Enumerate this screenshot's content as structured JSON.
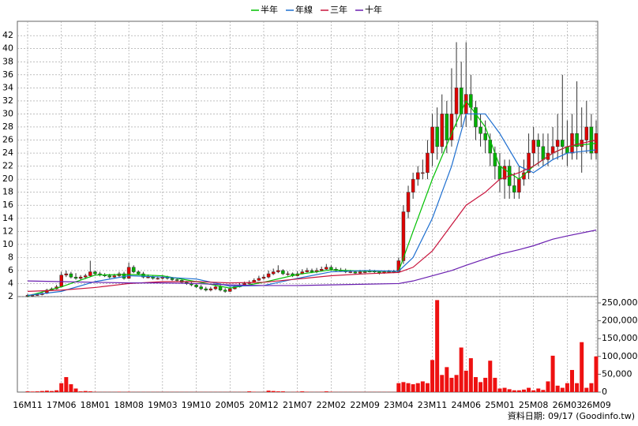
{
  "chart_data": {
    "type": "candlestick",
    "categories": [
      "16M11",
      null,
      null,
      null,
      null,
      null,
      null,
      "17M06",
      null,
      null,
      null,
      null,
      null,
      null,
      "18M01",
      null,
      null,
      null,
      null,
      null,
      null,
      "18M08",
      null,
      null,
      null,
      null,
      null,
      null,
      "19M03",
      null,
      null,
      null,
      null,
      null,
      null,
      "19M10",
      null,
      null,
      null,
      null,
      null,
      null,
      "20M05",
      null,
      null,
      null,
      null,
      null,
      null,
      "20M12",
      null,
      null,
      null,
      null,
      null,
      null,
      "21M07",
      null,
      null,
      null,
      null,
      null,
      null,
      "22M02",
      null,
      null,
      null,
      null,
      null,
      null,
      "22M09",
      null,
      null,
      null,
      null,
      null,
      null,
      "23M04",
      null,
      null,
      null,
      null,
      null,
      null,
      "23M11",
      null,
      null,
      null,
      null,
      null,
      null,
      "24M06",
      null,
      null,
      null,
      null,
      null,
      null,
      "25M01",
      null,
      null,
      null,
      null,
      null,
      null,
      "25M08",
      null,
      null,
      null,
      null,
      null,
      null,
      "26M03",
      null,
      null,
      null,
      null,
      null,
      "26M09"
    ],
    "open": [
      2.1,
      2.2,
      2.2,
      2.3,
      2.5,
      3,
      3.2,
      3.5,
      5.3,
      5.5,
      5,
      4.8,
      5,
      5.2,
      5.8,
      5.5,
      5.3,
      5.2,
      5,
      5.2,
      5.5,
      4.8,
      6.5,
      5.8,
      5.5,
      5,
      5,
      4.8,
      4.8,
      5,
      4.8,
      4.6,
      4.5,
      4.2,
      4,
      3.8,
      3.5,
      3.2,
      3,
      3.2,
      3.5,
      3,
      2.8,
      3.2,
      3.5,
      3.8,
      4,
      4.2,
      4.5,
      4.8,
      5,
      5.5,
      5.8,
      6,
      5.5,
      5.5,
      5.2,
      5.5,
      5.8,
      6,
      5.8,
      6,
      6.2,
      6.5,
      6.2,
      6,
      6,
      5.8,
      5.8,
      5.6,
      5.8,
      5.8,
      5.9,
      5.8,
      5.6,
      5.8,
      5.8,
      5.8,
      7.5,
      15,
      18,
      20,
      21,
      21,
      24,
      28,
      25,
      30,
      26,
      30,
      34,
      30,
      33,
      31,
      28,
      27,
      26,
      24,
      22,
      20,
      22,
      19,
      18,
      20,
      21,
      24,
      26,
      25,
      23,
      24,
      25,
      26,
      25,
      24,
      27,
      25,
      26,
      28,
      24
    ],
    "high": [
      2.4,
      2.4,
      2.5,
      2.8,
      3.2,
      3.4,
      3.8,
      5.8,
      6,
      5.8,
      5.6,
      5.3,
      5.5,
      7.5,
      6,
      5.8,
      5.6,
      5.5,
      5.5,
      5.8,
      5.8,
      7.2,
      6.8,
      6,
      5.8,
      5.4,
      5.2,
      5.1,
      5.3,
      5.2,
      5,
      4.8,
      4.6,
      4.4,
      4.2,
      4,
      3.8,
      3.5,
      3.5,
      3.8,
      3.8,
      3.3,
      3.5,
      3.8,
      4.1,
      4.3,
      4.5,
      4.8,
      5.2,
      5.4,
      6,
      6.3,
      6.8,
      6.2,
      5.9,
      5.7,
      5.9,
      6.2,
      6.4,
      6.3,
      6.4,
      6.6,
      7,
      6.8,
      6.5,
      6.4,
      6.3,
      6.1,
      6,
      6.1,
      6.1,
      6.2,
      6.1,
      6,
      6,
      6.1,
      6.1,
      8,
      16,
      19,
      21,
      22,
      23,
      26,
      30,
      31,
      33,
      32,
      37,
      41,
      38,
      41,
      36,
      32,
      30,
      29,
      27,
      25,
      24,
      23,
      23,
      21,
      22,
      23,
      27,
      28,
      27,
      27,
      27,
      28,
      30,
      36,
      29,
      30,
      35,
      31,
      32,
      30,
      29
    ],
    "low": [
      1.9,
      2,
      2.1,
      2.2,
      2.4,
      2.9,
      3.1,
      3.4,
      5,
      4.8,
      4.6,
      4.6,
      4.7,
      5,
      5.2,
      5.1,
      5,
      4.8,
      4.8,
      5,
      4.6,
      4.7,
      5.6,
      5.3,
      4.8,
      4.8,
      4.6,
      4.6,
      4.6,
      4.6,
      4.4,
      4.3,
      4,
      3.8,
      3.6,
      3.3,
      3,
      2.8,
      2.8,
      3,
      2.8,
      2.6,
      2.7,
      3.1,
      3.4,
      3.7,
      3.9,
      4.1,
      4.4,
      4.6,
      4.8,
      5.3,
      5.6,
      5.3,
      5.2,
      5,
      5.1,
      5.4,
      5.7,
      5.6,
      5.6,
      5.9,
      6.1,
      6,
      5.8,
      5.8,
      5.6,
      5.6,
      5.4,
      5.5,
      5.6,
      5.7,
      5.6,
      5.4,
      5.5,
      5.6,
      5.6,
      5.6,
      7,
      14,
      17,
      19,
      20,
      20,
      22,
      23,
      24,
      24,
      25,
      28,
      28,
      28,
      29,
      26,
      25,
      24,
      22,
      20,
      18,
      17,
      17,
      17,
      17,
      19,
      20,
      22,
      22,
      22,
      22,
      23,
      23,
      23,
      22,
      23,
      23,
      21,
      24,
      23,
      23
    ],
    "close": [
      2.2,
      2.2,
      2.3,
      2.5,
      3,
      3.2,
      3.5,
      5.3,
      5.5,
      5,
      4.8,
      5,
      5.2,
      5.8,
      5.5,
      5.3,
      5.2,
      5,
      5.2,
      5.5,
      4.8,
      6.5,
      5.8,
      5.5,
      5,
      5,
      4.8,
      4.8,
      5,
      4.8,
      4.6,
      4.5,
      4.2,
      4,
      3.8,
      3.5,
      3.2,
      3,
      3.2,
      3.5,
      3,
      2.8,
      3.2,
      3.5,
      3.8,
      4,
      4.2,
      4.5,
      4.8,
      5,
      5.5,
      5.8,
      6,
      5.5,
      5.5,
      5.2,
      5.5,
      5.8,
      6,
      5.8,
      6,
      6.2,
      6.5,
      6.2,
      6,
      6,
      5.8,
      5.8,
      5.6,
      5.8,
      5.8,
      5.9,
      5.8,
      5.6,
      5.8,
      5.8,
      5.8,
      7.5,
      15,
      18,
      20,
      21,
      21,
      24,
      28,
      25,
      30,
      26,
      30,
      34,
      30,
      33,
      31,
      28,
      27,
      26,
      24,
      22,
      20,
      22,
      19,
      18,
      20,
      21,
      24,
      26,
      25,
      23,
      24,
      25,
      26,
      25,
      24,
      27,
      25,
      26,
      28,
      24,
      27
    ],
    "volume": [
      2000,
      1500,
      2000,
      3000,
      4000,
      3000,
      5000,
      25000,
      42000,
      22000,
      10000,
      2000,
      3000,
      2000,
      1000,
      500,
      500,
      500,
      500,
      1000,
      500,
      1000,
      500,
      500,
      500,
      500,
      500,
      500,
      500,
      500,
      500,
      500,
      500,
      500,
      500,
      500,
      500,
      500,
      500,
      500,
      500,
      500,
      500,
      500,
      500,
      500,
      2000,
      1000,
      500,
      500,
      4000,
      3000,
      2000,
      2000,
      500,
      500,
      1000,
      2000,
      1000,
      500,
      500,
      1000,
      2000,
      1000,
      500,
      500,
      500,
      500,
      500,
      500,
      500,
      500,
      500,
      500,
      500,
      500,
      500,
      25000,
      28000,
      25000,
      22000,
      25000,
      30000,
      25000,
      90000,
      258000,
      48000,
      70000,
      40000,
      48000,
      125000,
      60000,
      95000,
      42000,
      28000,
      40000,
      88000,
      40000,
      10000,
      12000,
      8000,
      5000,
      5000,
      7000,
      12000,
      5000,
      10000,
      6000,
      30000,
      102000,
      18000,
      12000,
      25000,
      62000,
      25000,
      140000,
      12000,
      25000,
      100000
    ],
    "up_color": "#e00000",
    "down_color": "#00b000",
    "volume_color": "#ee1111",
    "series": [
      {
        "name": "半年",
        "color": "#00c000",
        "x": [
          0,
          7,
          14,
          21,
          28,
          35,
          42,
          49,
          56,
          63,
          70,
          77,
          80,
          84,
          88,
          91,
          95,
          98,
          102,
          105,
          109,
          112,
          118
        ],
        "values": [
          2.1,
          3.5,
          5.3,
          5.4,
          5.2,
          4.3,
          3.3,
          4.2,
          5.4,
          6.1,
          5.9,
          5.9,
          12,
          20,
          27,
          32,
          28,
          22,
          20,
          22,
          24,
          25,
          25.5
        ]
      },
      {
        "name": "年線",
        "color": "#1e6fd0",
        "x": [
          0,
          7,
          14,
          21,
          28,
          35,
          42,
          49,
          56,
          63,
          70,
          77,
          80,
          84,
          88,
          91,
          95,
          98,
          102,
          105,
          109,
          112,
          118
        ],
        "values": [
          2.2,
          2.8,
          4.3,
          5.2,
          5,
          4.7,
          3.6,
          3.7,
          4.8,
          5.8,
          6,
          5.9,
          8,
          14,
          22,
          30,
          30,
          27,
          22,
          21,
          23,
          24,
          24.5
        ]
      },
      {
        "name": "三年",
        "color": "#c8143c",
        "x": [
          0,
          7,
          14,
          21,
          28,
          35,
          42,
          49,
          56,
          63,
          70,
          77,
          80,
          84,
          88,
          91,
          95,
          98,
          102,
          105,
          109,
          112,
          118
        ],
        "values": [
          2.8,
          3,
          3.4,
          4,
          4.3,
          4.3,
          4.1,
          4.2,
          4.7,
          5.2,
          5.5,
          5.7,
          6.5,
          9,
          13,
          16,
          18,
          20,
          21,
          22,
          24,
          25,
          26
        ]
      },
      {
        "name": "十年",
        "color": "#6a1fb0",
        "x": [
          0,
          7,
          14,
          21,
          28,
          35,
          42,
          49,
          56,
          63,
          70,
          77,
          80,
          84,
          88,
          91,
          95,
          98,
          102,
          105,
          109,
          112,
          118
        ],
        "values": [
          4.4,
          4.3,
          4.2,
          4.1,
          4.1,
          4,
          3.8,
          3.7,
          3.7,
          3.8,
          3.9,
          4,
          4.4,
          5.2,
          6,
          6.8,
          7.8,
          8.5,
          9.2,
          9.8,
          10.8,
          11.3,
          12.2
        ]
      }
    ],
    "ylim": [
      2,
      44.2
    ],
    "yticks": [
      2,
      4,
      6,
      8,
      10,
      12,
      14,
      16,
      18,
      20,
      22,
      24,
      26,
      28,
      30,
      32,
      34,
      36,
      38,
      40,
      42
    ],
    "volume_ylim": [
      0,
      267700
    ],
    "volume_yticks": [
      0,
      {
        "value": 50000,
        "label": "50,000"
      },
      {
        "value": 100000,
        "label": "100,000"
      },
      {
        "value": 150000,
        "label": "150,000"
      },
      {
        "value": 200000,
        "label": "200,000"
      },
      {
        "value": 250000,
        "label": "250,000"
      }
    ],
    "grid": true,
    "source": "資料日期: 09/17 (Goodinfo.tw)"
  }
}
